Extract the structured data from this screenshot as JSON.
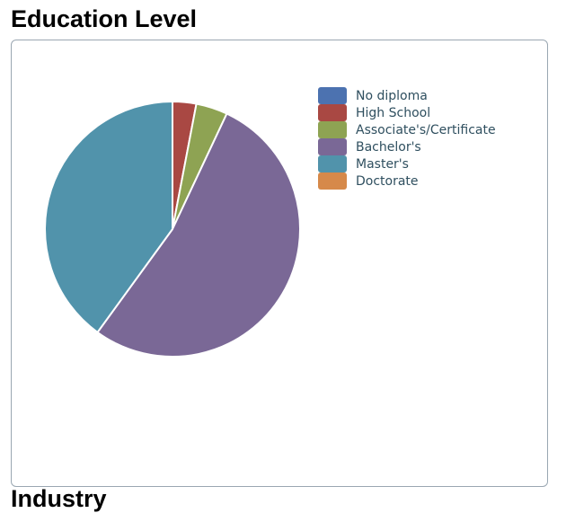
{
  "page": {
    "title": "Education Level",
    "next_title": "Industry"
  },
  "chart_data": {
    "type": "pie",
    "title": "",
    "legend_position": "top-right",
    "categories": [
      "No diploma",
      "High School",
      "Associate's/Certificate",
      "Bachelor's",
      "Master's",
      "Doctorate"
    ],
    "values": [
      0,
      3,
      4,
      53,
      40,
      0
    ],
    "colors": [
      "#4c72b0",
      "#a94843",
      "#8ea353",
      "#7a6896",
      "#5193ab",
      "#d6894a"
    ]
  }
}
